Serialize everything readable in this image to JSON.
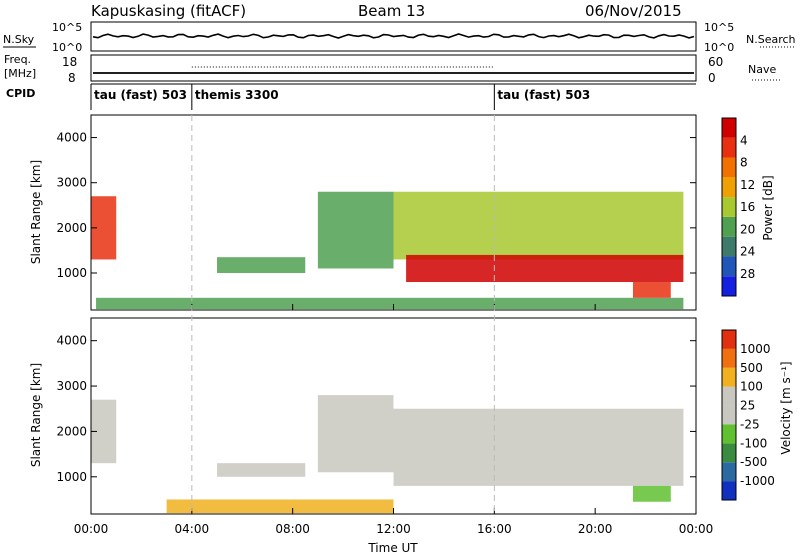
{
  "header": {
    "station": "Kapuskasing (fitACF)",
    "beam": "Beam 13",
    "date": "06/Nov/2015"
  },
  "top_panels": {
    "nsky_label": "N.Sky",
    "nsky_ticks": [
      "10^5",
      "10^0"
    ],
    "nsearch_label": "N.Search",
    "nsearch_ticks": [
      "10^5",
      "10^0"
    ],
    "freq_label_1": "Freq.",
    "freq_label_2": "[MHz]",
    "freq_ticks": [
      "18",
      "8"
    ],
    "nave_label": "Nave",
    "nave_ticks": [
      "60",
      "0"
    ],
    "cpid_label": "CPID",
    "cpid_segments": [
      {
        "label": "tau (fast) 503",
        "start": 0,
        "end": 4
      },
      {
        "label": "themis 3300",
        "start": 4,
        "end": 16
      },
      {
        "label": "tau (fast) 503",
        "start": 16,
        "end": 24
      }
    ]
  },
  "time_axis": {
    "xlabel": "Time UT",
    "ticks": [
      "00:00",
      "04:00",
      "08:00",
      "12:00",
      "16:00",
      "20:00",
      "00:00"
    ],
    "tick_hours": [
      0,
      4,
      8,
      12,
      16,
      20,
      24
    ],
    "divider_hours": [
      4,
      16
    ]
  },
  "power_panel": {
    "ylabel": "Slant Range [km]",
    "yticks": [
      "1000",
      "2000",
      "3000",
      "4000"
    ],
    "colorbar_label": "Power [dB]",
    "colorbar_ticks": [
      "4",
      "8",
      "12",
      "16",
      "20",
      "24",
      "28"
    ],
    "colorbar_colors": [
      "#1420e0",
      "#2255b8",
      "#3d7a6a",
      "#4fa050",
      "#a8c830",
      "#f0a000",
      "#f07000",
      "#e83010",
      "#d00000"
    ]
  },
  "velocity_panel": {
    "ylabel": "Slant Range [km]",
    "yticks": [
      "1000",
      "2000",
      "3000",
      "4000"
    ],
    "colorbar_label": "Velocity [m s⁻¹]",
    "colorbar_ticks": [
      "1000",
      "500",
      "100",
      "25",
      "-25",
      "-100",
      "-500",
      "-1000"
    ],
    "colorbar_colors": [
      "#1030c0",
      "#2a6aa0",
      "#3a8a40",
      "#60c030",
      "#c8c8c0",
      "#c8c8c0",
      "#f0b020",
      "#f07010",
      "#e03010"
    ]
  },
  "chart_data": {
    "type": "heatmap",
    "x_range_hours": [
      0,
      24
    ],
    "y_range_km": [
      180,
      4500
    ],
    "power_regions": [
      {
        "t0": 0.0,
        "t1": 1.0,
        "r0": 1300,
        "r1": 2700,
        "level": 7
      },
      {
        "t0": 0.2,
        "t1": 23.5,
        "r0": 200,
        "r1": 450,
        "level": 3
      },
      {
        "t0": 5.0,
        "t1": 8.5,
        "r0": 1000,
        "r1": 1350,
        "level": 3
      },
      {
        "t0": 9.0,
        "t1": 12.0,
        "r0": 1100,
        "r1": 2800,
        "level": 3
      },
      {
        "t0": 12.0,
        "t1": 23.5,
        "r0": 1300,
        "r1": 2800,
        "level": 4
      },
      {
        "t0": 12.5,
        "t1": 23.5,
        "r0": 800,
        "r1": 1400,
        "level": 8
      },
      {
        "t0": 21.5,
        "t1": 23.0,
        "r0": 450,
        "r1": 800,
        "level": 7
      }
    ],
    "velocity_regions": [
      {
        "t0": 0.0,
        "t1": 1.0,
        "r0": 1300,
        "r1": 2700,
        "level": 4
      },
      {
        "t0": 3.0,
        "t1": 12.0,
        "r0": 200,
        "r1": 500,
        "level": 6
      },
      {
        "t0": 5.0,
        "t1": 8.5,
        "r0": 1000,
        "r1": 1300,
        "level": 4
      },
      {
        "t0": 9.0,
        "t1": 12.0,
        "r0": 1100,
        "r1": 2800,
        "level": 4
      },
      {
        "t0": 12.0,
        "t1": 23.5,
        "r0": 800,
        "r1": 2500,
        "level": 4
      },
      {
        "t0": 21.5,
        "t1": 23.0,
        "r0": 450,
        "r1": 800,
        "level": 3
      }
    ]
  }
}
